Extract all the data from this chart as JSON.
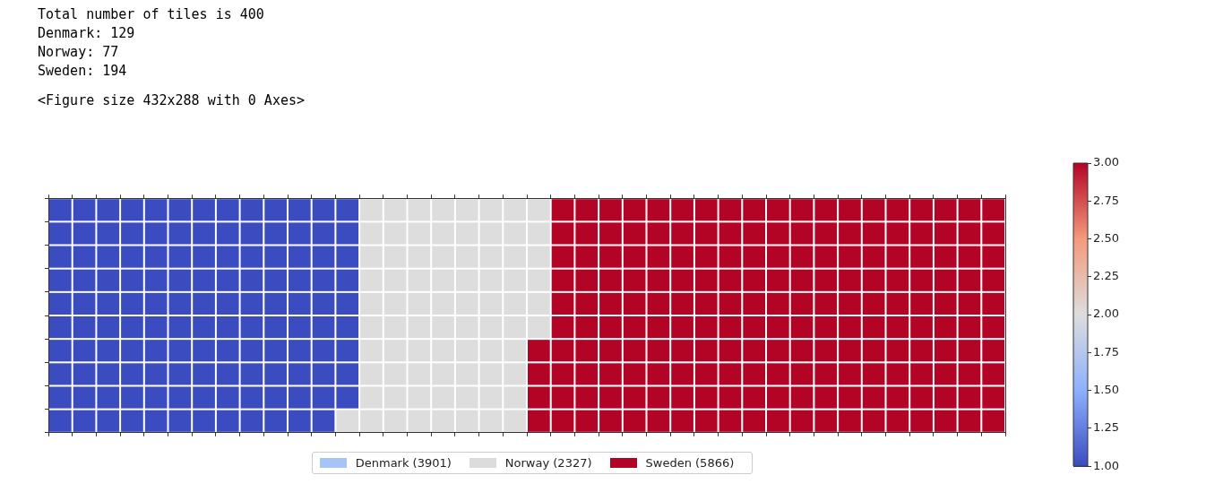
{
  "chart_data": {
    "type": "heatmap",
    "annotations": [
      "Total number of tiles is 400",
      "Denmark: 129",
      "Norway: 77",
      "Sweden: 194",
      "<Figure size 432x288 with 0 Axes>",
      "Denmark (3901)",
      "Norway (2327)",
      "Sweden (5866)"
    ],
    "categories": [
      null,
      null,
      null,
      null,
      null,
      null,
      null,
      null,
      null,
      null,
      null,
      null,
      null,
      null,
      null,
      null,
      null,
      null,
      null,
      null,
      null,
      null,
      null,
      null,
      null,
      null,
      null,
      null,
      null,
      null,
      null,
      null,
      null,
      null,
      null,
      null,
      null,
      null,
      null,
      null
    ],
    "y_categories": [
      null,
      null,
      null,
      null,
      null,
      null,
      null,
      null,
      null,
      null
    ],
    "cells": [
      [
        1,
        1,
        1,
        1,
        1,
        1,
        1,
        1,
        1,
        1,
        1,
        1,
        1,
        2,
        2,
        2,
        2,
        2,
        2,
        2,
        2,
        3,
        3,
        3,
        3,
        3,
        3,
        3,
        3,
        3,
        3,
        3,
        3,
        3,
        3,
        3,
        3,
        3,
        3,
        3
      ],
      [
        1,
        1,
        1,
        1,
        1,
        1,
        1,
        1,
        1,
        1,
        1,
        1,
        1,
        2,
        2,
        2,
        2,
        2,
        2,
        2,
        2,
        3,
        3,
        3,
        3,
        3,
        3,
        3,
        3,
        3,
        3,
        3,
        3,
        3,
        3,
        3,
        3,
        3,
        3,
        3
      ],
      [
        1,
        1,
        1,
        1,
        1,
        1,
        1,
        1,
        1,
        1,
        1,
        1,
        1,
        2,
        2,
        2,
        2,
        2,
        2,
        2,
        2,
        3,
        3,
        3,
        3,
        3,
        3,
        3,
        3,
        3,
        3,
        3,
        3,
        3,
        3,
        3,
        3,
        3,
        3,
        3
      ],
      [
        1,
        1,
        1,
        1,
        1,
        1,
        1,
        1,
        1,
        1,
        1,
        1,
        1,
        2,
        2,
        2,
        2,
        2,
        2,
        2,
        2,
        3,
        3,
        3,
        3,
        3,
        3,
        3,
        3,
        3,
        3,
        3,
        3,
        3,
        3,
        3,
        3,
        3,
        3,
        3
      ],
      [
        1,
        1,
        1,
        1,
        1,
        1,
        1,
        1,
        1,
        1,
        1,
        1,
        1,
        2,
        2,
        2,
        2,
        2,
        2,
        2,
        2,
        3,
        3,
        3,
        3,
        3,
        3,
        3,
        3,
        3,
        3,
        3,
        3,
        3,
        3,
        3,
        3,
        3,
        3,
        3
      ],
      [
        1,
        1,
        1,
        1,
        1,
        1,
        1,
        1,
        1,
        1,
        1,
        1,
        1,
        2,
        2,
        2,
        2,
        2,
        2,
        2,
        2,
        3,
        3,
        3,
        3,
        3,
        3,
        3,
        3,
        3,
        3,
        3,
        3,
        3,
        3,
        3,
        3,
        3,
        3,
        3
      ],
      [
        1,
        1,
        1,
        1,
        1,
        1,
        1,
        1,
        1,
        1,
        1,
        1,
        1,
        2,
        2,
        2,
        2,
        2,
        2,
        2,
        3,
        3,
        3,
        3,
        3,
        3,
        3,
        3,
        3,
        3,
        3,
        3,
        3,
        3,
        3,
        3,
        3,
        3,
        3,
        3
      ],
      [
        1,
        1,
        1,
        1,
        1,
        1,
        1,
        1,
        1,
        1,
        1,
        1,
        1,
        2,
        2,
        2,
        2,
        2,
        2,
        2,
        3,
        3,
        3,
        3,
        3,
        3,
        3,
        3,
        3,
        3,
        3,
        3,
        3,
        3,
        3,
        3,
        3,
        3,
        3,
        3
      ],
      [
        1,
        1,
        1,
        1,
        1,
        1,
        1,
        1,
        1,
        1,
        1,
        1,
        1,
        2,
        2,
        2,
        2,
        2,
        2,
        2,
        3,
        3,
        3,
        3,
        3,
        3,
        3,
        3,
        3,
        3,
        3,
        3,
        3,
        3,
        3,
        3,
        3,
        3,
        3,
        3
      ],
      [
        1,
        1,
        1,
        1,
        1,
        1,
        1,
        1,
        1,
        1,
        1,
        1,
        2,
        2,
        2,
        2,
        2,
        2,
        2,
        2,
        3,
        3,
        3,
        3,
        3,
        3,
        3,
        3,
        3,
        3,
        3,
        3,
        3,
        3,
        3,
        3,
        3,
        3,
        3,
        3
      ]
    ],
    "clim": [
      1,
      3
    ],
    "cticks": [
      {
        "value": 1,
        "label": "1.00"
      },
      {
        "value": 1.25,
        "label": "1.25"
      },
      {
        "value": 1.5,
        "label": "1.50"
      },
      {
        "value": 1.75,
        "label": "1.75"
      },
      {
        "value": 2,
        "label": "2.00"
      },
      {
        "value": 2.25,
        "label": "2.25"
      },
      {
        "value": 2.5,
        "label": "2.50"
      },
      {
        "value": 2.75,
        "label": "2.75"
      },
      {
        "value": 3,
        "label": "3.00"
      }
    ]
  }
}
